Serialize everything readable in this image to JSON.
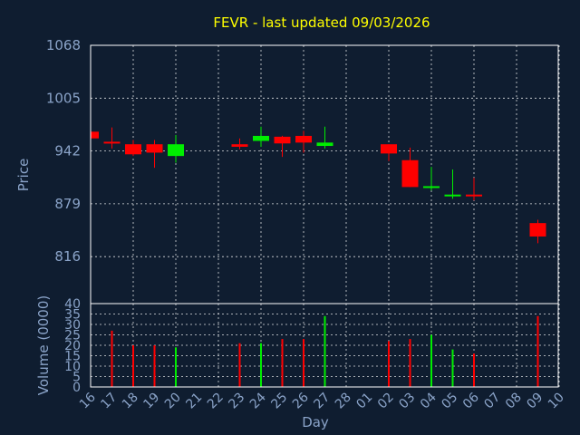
{
  "title": "FEVR - last updated 09/03/2026",
  "colors": {
    "background": "#0f1d30",
    "up": "#00ee00",
    "down": "#ff0000",
    "title": "#ffff00",
    "axis_text": "#8aa3c8",
    "grid": "#ffffff"
  },
  "chart_data": [
    {
      "type": "candlestick",
      "ylabel": "Price",
      "y_ticks": [
        "1068",
        "1005",
        "942",
        "879",
        "816"
      ],
      "ylim": [
        760,
        1068
      ],
      "grid": true,
      "x_categories": [
        "16",
        "17",
        "18",
        "19",
        "20",
        "21",
        "22",
        "23",
        "24",
        "25",
        "26",
        "27",
        "28",
        "01",
        "02",
        "03",
        "04",
        "05",
        "06",
        "07",
        "08",
        "09",
        "10"
      ],
      "candles": [
        {
          "day": "16",
          "open": 965,
          "close": 957,
          "high": 965,
          "low": 957
        },
        {
          "day": "17",
          "open": 953,
          "close": 951,
          "high": 970,
          "low": 945
        },
        {
          "day": "18",
          "open": 950,
          "close": 938,
          "high": 955,
          "low": 936
        },
        {
          "day": "19",
          "open": 950,
          "close": 940,
          "high": 955,
          "low": 922
        },
        {
          "day": "20",
          "open": 936,
          "close": 950,
          "high": 961,
          "low": 928
        },
        {
          "day": "23",
          "open": 950,
          "close": 947,
          "high": 957,
          "low": 944
        },
        {
          "day": "24",
          "open": 954,
          "close": 960,
          "high": 971,
          "low": 947
        },
        {
          "day": "25",
          "open": 959,
          "close": 951,
          "high": 960,
          "low": 935
        },
        {
          "day": "26",
          "open": 960,
          "close": 952,
          "high": 966,
          "low": 940
        },
        {
          "day": "27",
          "open": 948,
          "close": 952,
          "high": 971,
          "low": 945
        },
        {
          "day": "02",
          "open": 950,
          "close": 939,
          "high": 950,
          "low": 930
        },
        {
          "day": "03",
          "open": 931,
          "close": 899,
          "high": 946,
          "low": 899
        },
        {
          "day": "04",
          "open": 898,
          "close": 900,
          "high": 923,
          "low": 895
        },
        {
          "day": "05",
          "open": 889,
          "close": 890,
          "high": 920,
          "low": 885
        },
        {
          "day": "06",
          "open": 890,
          "close": 889,
          "high": 910,
          "low": 883
        },
        {
          "day": "09",
          "open": 856,
          "close": 840,
          "high": 860,
          "low": 832
        }
      ]
    },
    {
      "type": "bar",
      "ylabel": "Volume (0000)",
      "y_ticks": [
        "40",
        "35",
        "30",
        "25",
        "20",
        "15",
        "10",
        "5",
        "0"
      ],
      "ylim": [
        0,
        40
      ],
      "xlabel": "Day",
      "grid": true,
      "bars": [
        {
          "day": "17",
          "value": 27,
          "color": "down"
        },
        {
          "day": "18",
          "value": 20,
          "color": "down"
        },
        {
          "day": "19",
          "value": 20,
          "color": "down"
        },
        {
          "day": "20",
          "value": 19,
          "color": "up"
        },
        {
          "day": "23",
          "value": 21,
          "color": "down"
        },
        {
          "day": "24",
          "value": 21,
          "color": "up"
        },
        {
          "day": "25",
          "value": 23,
          "color": "down"
        },
        {
          "day": "26",
          "value": 23,
          "color": "down"
        },
        {
          "day": "27",
          "value": 34,
          "color": "up"
        },
        {
          "day": "02",
          "value": 22,
          "color": "down"
        },
        {
          "day": "03",
          "value": 23,
          "color": "down"
        },
        {
          "day": "04",
          "value": 25,
          "color": "up"
        },
        {
          "day": "05",
          "value": 18,
          "color": "up"
        },
        {
          "day": "06",
          "value": 16,
          "color": "down"
        },
        {
          "day": "09",
          "value": 34,
          "color": "down"
        }
      ]
    }
  ]
}
